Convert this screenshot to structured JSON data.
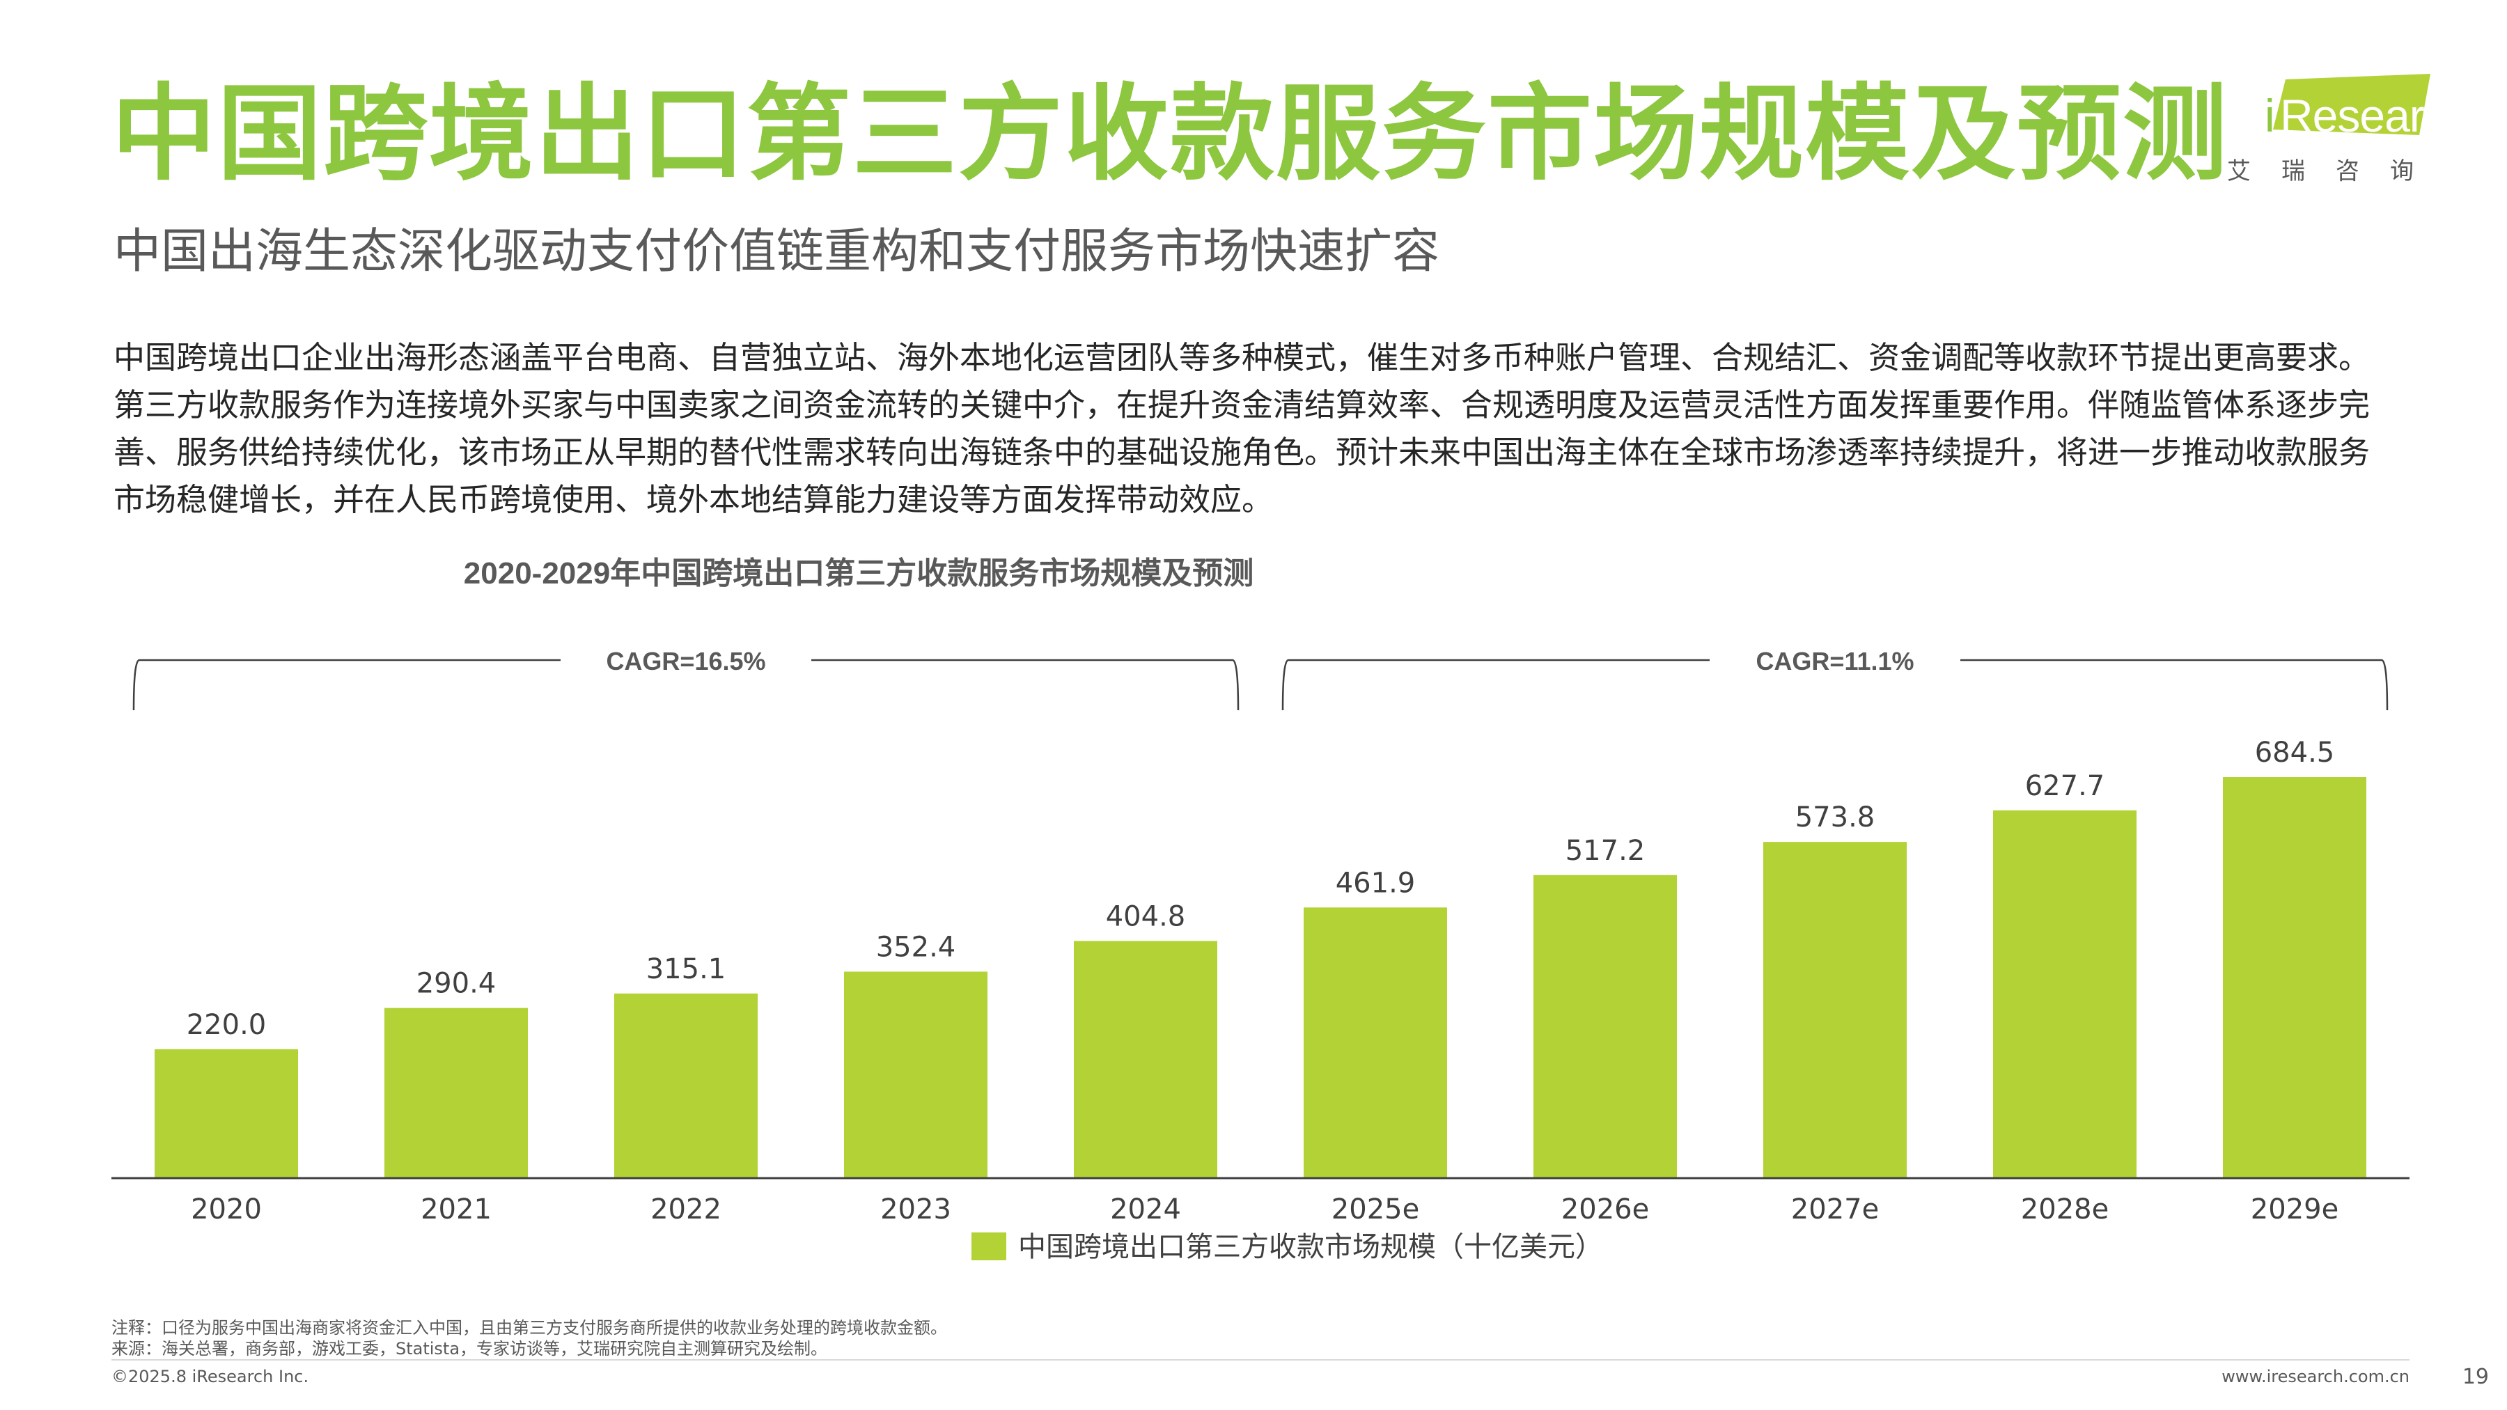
{
  "header": {
    "title": "中国跨境出口第三方收款服务市场规模及预测",
    "subtitle": "中国出海生态深化驱动支付价值链重构和支付服务市场快速扩容"
  },
  "logo": {
    "word_i": "i",
    "word_rest": "Research",
    "cn": "艾瑞咨询"
  },
  "body_text": "中国跨境出口企业出海形态涵盖平台电商、自营独立站、海外本地化运营团队等多种模式，催生对多币种账户管理、合规结汇、资金调配等收款环节提出更高要求。第三方收款服务作为连接境外买家与中国卖家之间资金流转的关键中介，在提升资金清结算效率、合规透明度及运营灵活性方面发挥重要作用。伴随监管体系逐步完善、服务供给持续优化，该市场正从早期的替代性需求转向出海链条中的基础设施角色。预计未来中国出海主体在全球市场渗透率持续提升，将进一步推动收款服务市场稳健增长，并在人民币跨境使用、境外本地结算能力建设等方面发挥带动效应。",
  "chart_data": {
    "type": "bar",
    "title": "2020-2029年中国跨境出口第三方收款服务市场规模及预测",
    "categories": [
      "2020",
      "2021",
      "2022",
      "2023",
      "2024",
      "2025e",
      "2026e",
      "2027e",
      "2028e",
      "2029e"
    ],
    "series": [
      {
        "name": "中国跨境出口第三方收款市场规模（十亿美元）",
        "values": [
          220.0,
          290.4,
          315.1,
          352.4,
          404.8,
          461.9,
          517.2,
          573.8,
          627.7,
          684.5
        ],
        "labels": [
          "220.0",
          "290.4",
          "315.1",
          "352.4",
          "404.8",
          "461.9",
          "517.2",
          "573.8",
          "627.7",
          "684.5"
        ]
      }
    ],
    "ylim": [
      0,
      684.5
    ],
    "annotations": [
      {
        "text": "CAGR=16.5%",
        "from": "2020",
        "to": "2024"
      },
      {
        "text": "CAGR=11.1%",
        "from": "2025e",
        "to": "2029e"
      }
    ],
    "legend": "bottom-center",
    "grid": false,
    "bar_color": "#b2d235"
  },
  "footer": {
    "note": "注释：口径为服务中国出海商家将资金汇入中国，且由第三方支付服务商所提供的收款业务处理的跨境收款金额。",
    "source": "来源：海关总署，商务部，游戏工委，Statista，专家访谈等，艾瑞研究院自主测算研究及绘制。",
    "copyright": "©2025.8 iResearch Inc.",
    "url": "www.iresearch.com.cn",
    "page": "19"
  }
}
